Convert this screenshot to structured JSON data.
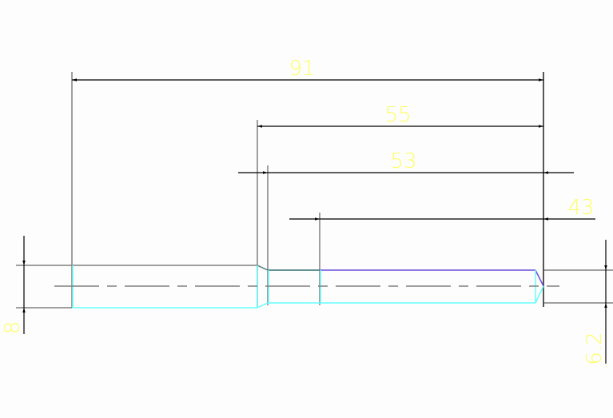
{
  "drawing": {
    "dimensions": {
      "overall_length": "91",
      "step_length": "55",
      "reduced_length": "53",
      "thread_length": "43",
      "large_diameter": "8",
      "small_diameter": "6.2"
    },
    "colors": {
      "background": "#fcfdfc",
      "geometry_line": "#808080",
      "dimension_line": "#000000",
      "edge_cyan": "#66ffff",
      "thread_edge": "#6a4cdc",
      "dimension_text": "#ffff66"
    }
  }
}
